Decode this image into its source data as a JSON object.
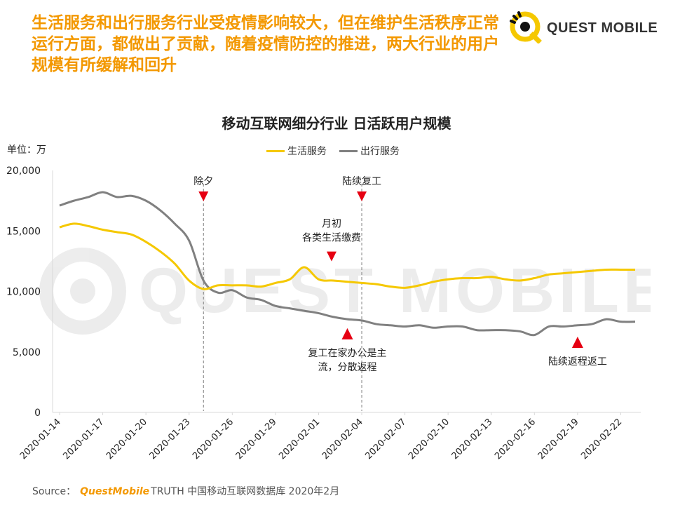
{
  "headline": "生活服务和出行服务行业受疫情影响较大，但在维护生活秩序正常运行方面，都做出了贡献，随着疫情防控的推进，两大行业的用户规模有所缓解和回升",
  "logo": {
    "text": "QUEST MOBILE",
    "watermark_text": "QUEST MOBILE"
  },
  "colors": {
    "accent": "#f39800",
    "life_service": "#f5c800",
    "travel_service": "#808080",
    "marker": "#e60012"
  },
  "source": {
    "prefix": "Source：",
    "brand": "QuestMobile",
    "rest": "TRUTH 中国移动互联网数据库 2020年2月"
  },
  "chart_data": {
    "type": "line",
    "title": "移动互联网细分行业 日活跃用户规模",
    "unit_label": "单位：万",
    "ylim": [
      0,
      20000
    ],
    "yticks": [
      0,
      5000,
      10000,
      15000,
      20000
    ],
    "ytick_labels": [
      "0",
      "5,000",
      "10,000",
      "15,000",
      "20,000"
    ],
    "x": [
      "2020-01-14",
      "2020-01-15",
      "2020-01-16",
      "2020-01-17",
      "2020-01-18",
      "2020-01-19",
      "2020-01-20",
      "2020-01-21",
      "2020-01-22",
      "2020-01-23",
      "2020-01-24",
      "2020-01-25",
      "2020-01-26",
      "2020-01-27",
      "2020-01-28",
      "2020-01-29",
      "2020-01-30",
      "2020-01-31",
      "2020-02-01",
      "2020-02-02",
      "2020-02-03",
      "2020-02-04",
      "2020-02-05",
      "2020-02-06",
      "2020-02-07",
      "2020-02-08",
      "2020-02-09",
      "2020-02-10",
      "2020-02-11",
      "2020-02-12",
      "2020-02-13",
      "2020-02-14",
      "2020-02-15",
      "2020-02-16",
      "2020-02-17",
      "2020-02-18",
      "2020-02-19",
      "2020-02-20",
      "2020-02-21",
      "2020-02-22",
      "2020-02-23"
    ],
    "xtick_labels": [
      "2020-01-14",
      "2020-01-17",
      "2020-01-20",
      "2020-01-23",
      "2020-01-26",
      "2020-01-29",
      "2020-02-01",
      "2020-02-04",
      "2020-02-07",
      "2020-02-10",
      "2020-02-13",
      "2020-02-16",
      "2020-02-19",
      "2020-02-22"
    ],
    "legend_position": "top-center",
    "grid": false,
    "series": [
      {
        "name": "生活服务",
        "color": "#f5c800",
        "values": [
          15300,
          15600,
          15400,
          15100,
          14900,
          14700,
          14100,
          13300,
          12300,
          10900,
          10200,
          10500,
          10500,
          10500,
          10400,
          10700,
          11000,
          12000,
          11000,
          10900,
          10800,
          10700,
          10600,
          10400,
          10300,
          10500,
          10800,
          11000,
          11100,
          11100,
          11200,
          11000,
          10900,
          11100,
          11400,
          11500,
          11600,
          11700,
          11800,
          11800,
          11800
        ]
      },
      {
        "name": "出行服务",
        "color": "#808080",
        "values": [
          17100,
          17500,
          17800,
          18200,
          17800,
          17900,
          17500,
          16700,
          15600,
          14200,
          10900,
          9900,
          10100,
          9500,
          9300,
          8800,
          8600,
          8400,
          8200,
          7900,
          7700,
          7600,
          7300,
          7200,
          7100,
          7200,
          7000,
          7100,
          7100,
          6800,
          6800,
          6800,
          6700,
          6400,
          7100,
          7100,
          7200,
          7300,
          7700,
          7500,
          7500
        ]
      }
    ],
    "annotations": [
      {
        "label": "除夕",
        "date": "2020-01-24",
        "type": "vline",
        "marker": "down"
      },
      {
        "label": "陆续复工",
        "date": "2020-02-04",
        "type": "vline",
        "marker": "down"
      },
      {
        "label": "月初\n各类生活缴费",
        "date": "2020-02-02",
        "value": 13300,
        "marker": "down"
      },
      {
        "label": "复工在家办公是主\n流，分散返程",
        "date": "2020-02-03",
        "value": 6500,
        "marker": "up"
      },
      {
        "label": "陆续返程返工",
        "date": "2020-02-19",
        "value": 5800,
        "marker": "up"
      }
    ]
  }
}
